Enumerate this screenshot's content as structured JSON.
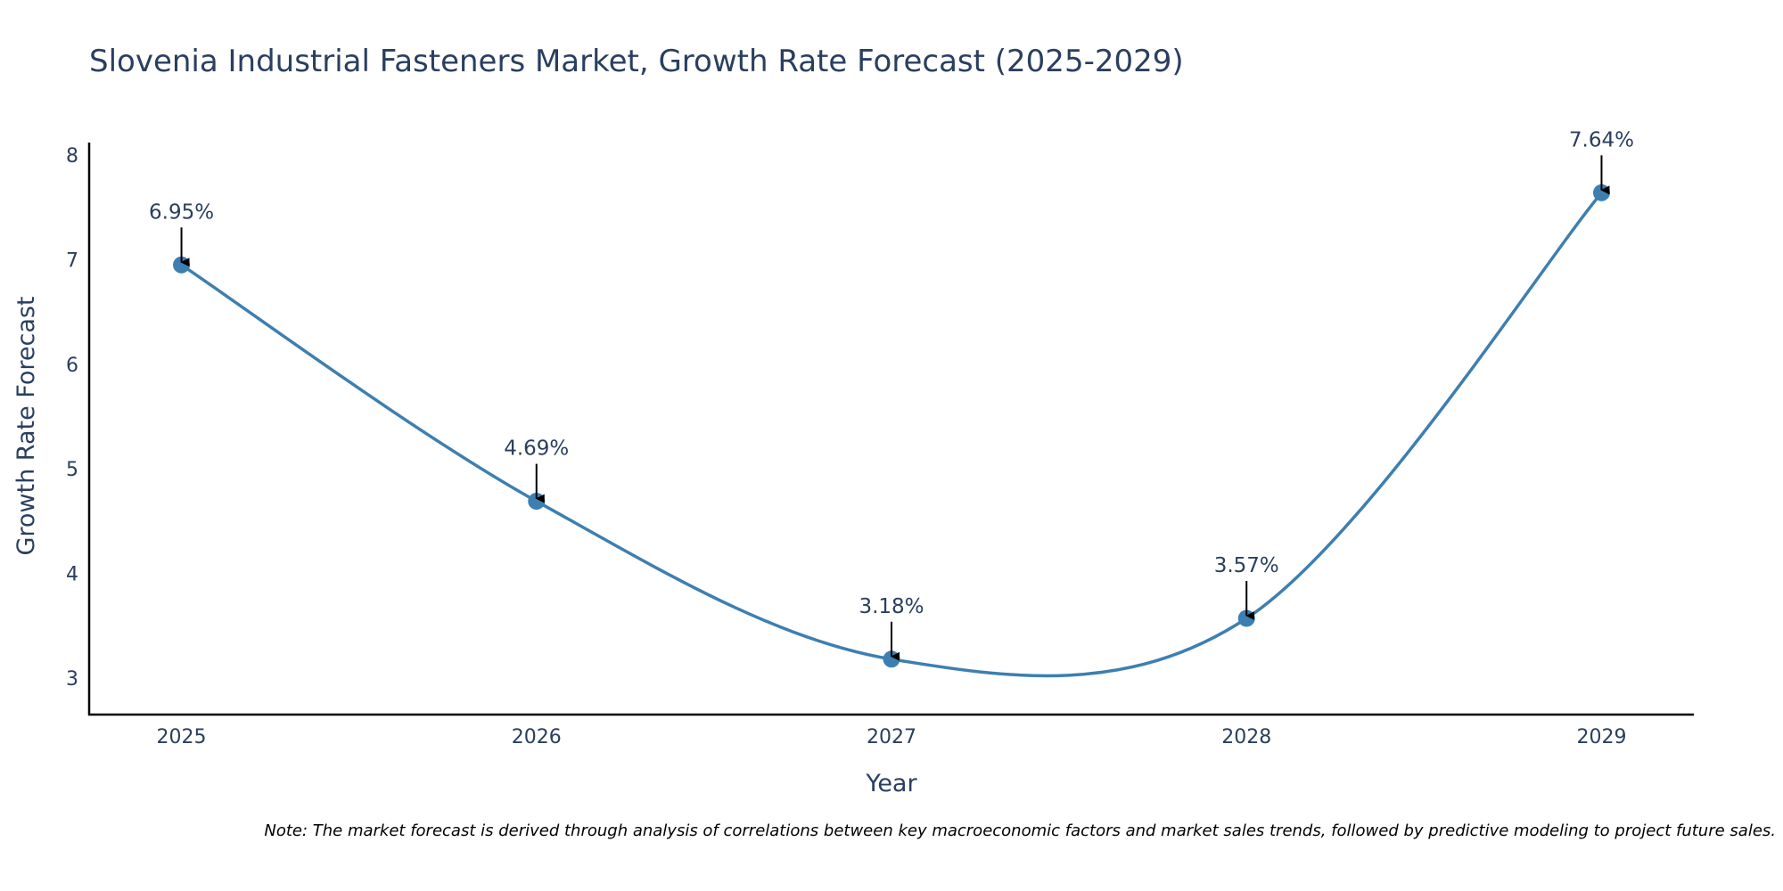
{
  "chart_data": {
    "type": "line",
    "title": "Slovenia Industrial Fasteners Market, Growth Rate Forecast (2025-2029)",
    "xlabel": "Year",
    "ylabel": "Growth Rate Forecast",
    "categories": [
      "2025",
      "2026",
      "2027",
      "2028",
      "2029"
    ],
    "series": [
      {
        "name": "Growth Rate Forecast",
        "values": [
          6.95,
          4.69,
          3.18,
          3.57,
          7.64
        ]
      }
    ],
    "data_labels": [
      "6.95%",
      "4.69%",
      "3.18%",
      "3.57%",
      "7.64%"
    ],
    "yticks": [
      3,
      4,
      5,
      6,
      7,
      8
    ],
    "ylim": [
      2.65,
      8.12
    ],
    "xlim": [
      2024.74,
      2029.26
    ],
    "grid": false,
    "legend": "none",
    "colors": {
      "line": "#3d7fb0",
      "marker": "#3d7fb0",
      "text": "#2a3f5f",
      "axis": "#000000"
    }
  },
  "note": "Note: The market forecast is derived through analysis of correlations between key macroeconomic factors and market sales trends, followed by predictive modeling to project future sales."
}
